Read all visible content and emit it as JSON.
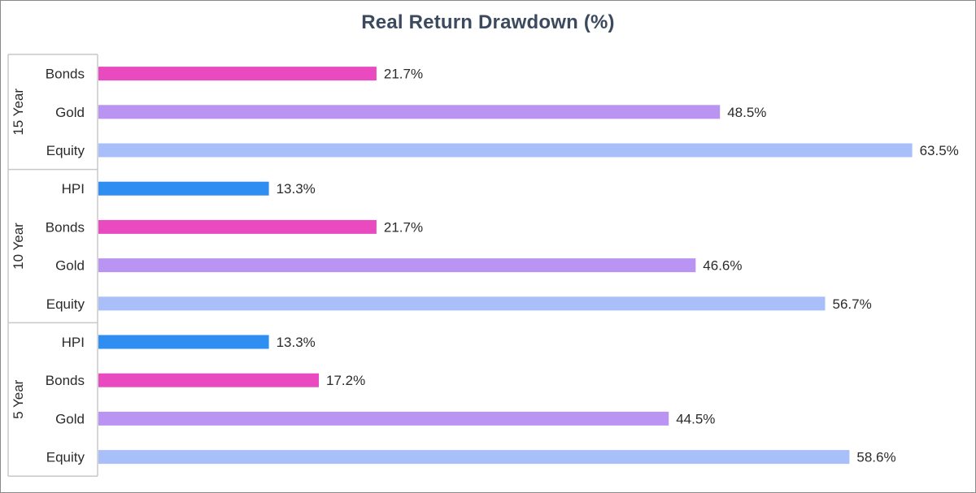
{
  "chart_data": {
    "type": "bar",
    "orientation": "horizontal",
    "title": "Real Return Drawdown (%)",
    "value_suffix": "%",
    "xlim": [
      0,
      66
    ],
    "grid": false,
    "legend": "none",
    "groups": [
      {
        "name": "15 Year",
        "bars": [
          {
            "category": "Bonds",
            "value": 21.7,
            "label": "21.7%"
          },
          {
            "category": "Gold",
            "value": 48.5,
            "label": "48.5%"
          },
          {
            "category": "Equity",
            "value": 63.5,
            "label": "63.5%"
          }
        ]
      },
      {
        "name": "10 Year",
        "bars": [
          {
            "category": "HPI",
            "value": 13.3,
            "label": "13.3%"
          },
          {
            "category": "Bonds",
            "value": 21.7,
            "label": "21.7%"
          },
          {
            "category": "Gold",
            "value": 46.6,
            "label": "46.6%"
          },
          {
            "category": "Equity",
            "value": 56.7,
            "label": "56.7%"
          }
        ]
      },
      {
        "name": "5 Year",
        "bars": [
          {
            "category": "HPI",
            "value": 13.3,
            "label": "13.3%"
          },
          {
            "category": "Bonds",
            "value": 17.2,
            "label": "17.2%"
          },
          {
            "category": "Gold",
            "value": 44.5,
            "label": "44.5%"
          },
          {
            "category": "Equity",
            "value": 58.6,
            "label": "58.6%"
          }
        ]
      }
    ],
    "colors": {
      "HPI": "#2f8ef2",
      "Bonds": "#ea4abf",
      "Gold": "#b994f2",
      "Equity": "#a9bffa"
    },
    "axis_color": "#c8c8c8"
  }
}
